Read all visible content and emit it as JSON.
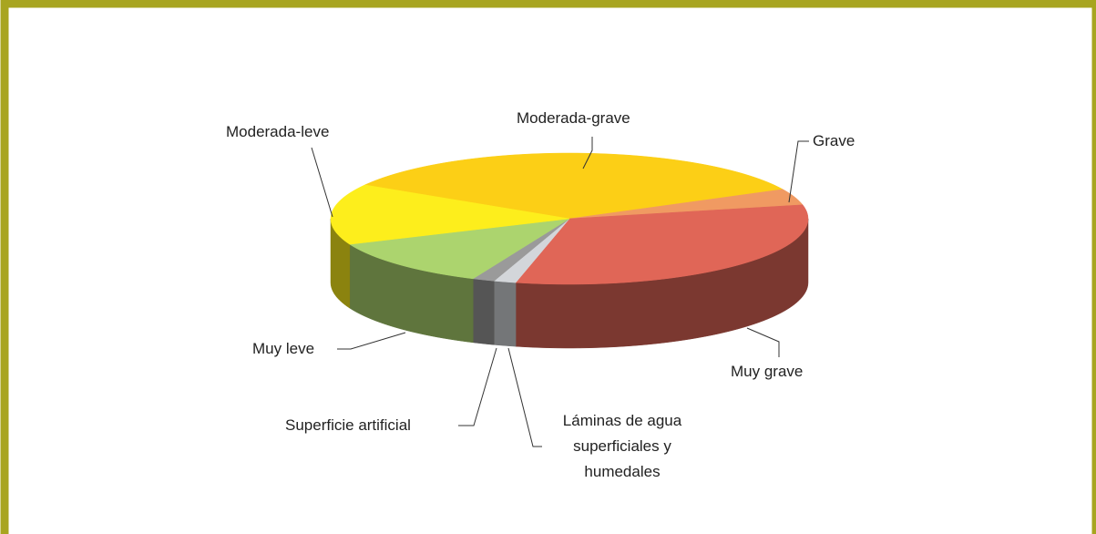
{
  "chart_data": {
    "type": "pie3d",
    "categories": [
      "Moderada-grave",
      "Grave",
      "Muy grave",
      "Láminas de agua superficiales y humedales",
      "Superficie artificial",
      "Muy leve",
      "Moderada-leve"
    ],
    "values": [
      34,
      4,
      32,
      1.5,
      1.5,
      12,
      15
    ],
    "colors": [
      "#fccf16",
      "#f09a62",
      "#e06657",
      "#d3d6da",
      "#9a9a9a",
      "#acd46e",
      "#fdee1c"
    ]
  }
}
